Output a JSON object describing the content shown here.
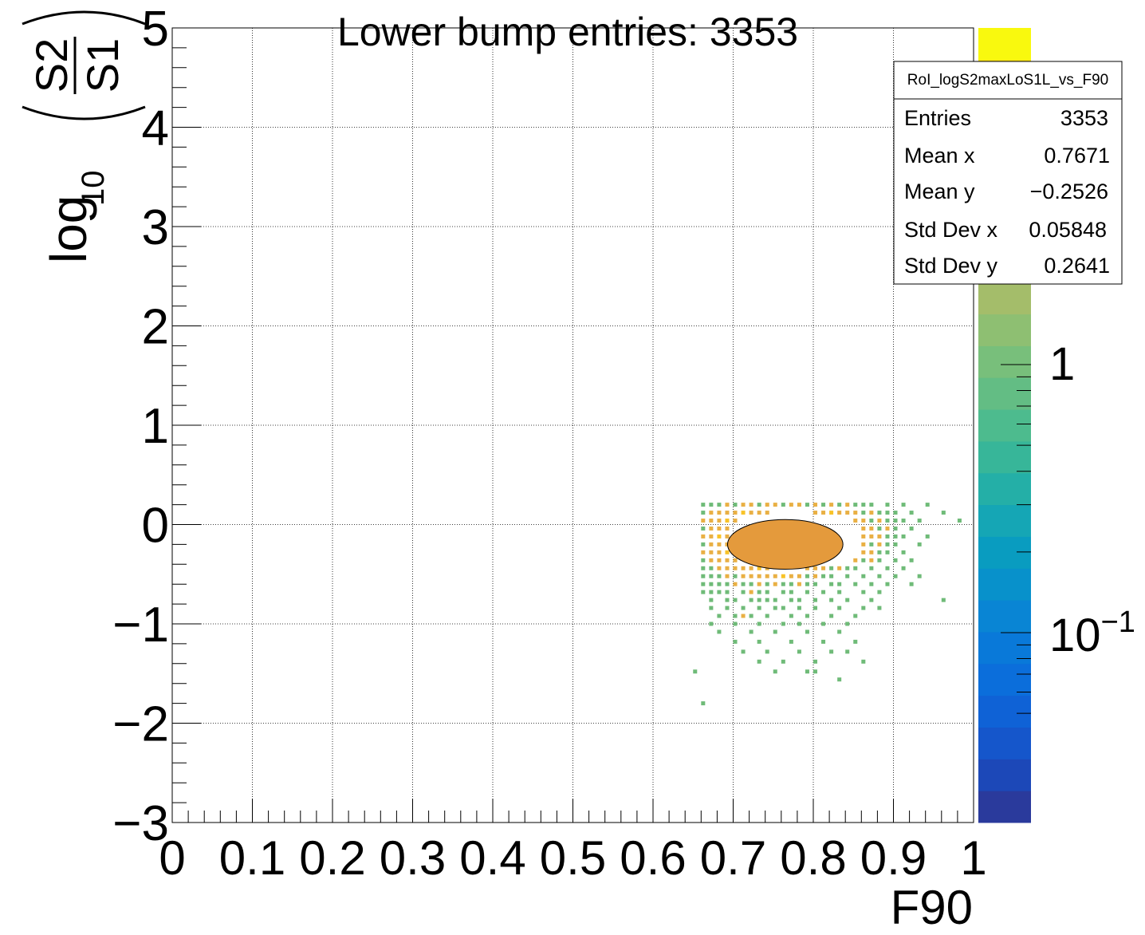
{
  "chart_data": {
    "type": "heatmap",
    "title": "Lower bump entries: 3353",
    "xlabel": "F90",
    "ylabel": {
      "prefix": "log",
      "subscript": "10",
      "numerator": "S2",
      "denominator": "S1"
    },
    "xlim": [
      0,
      1
    ],
    "ylim": [
      -3,
      5
    ],
    "grid": true,
    "x_ticks": [
      "0",
      "0.1",
      "0.2",
      "0.3",
      "0.4",
      "0.5",
      "0.6",
      "0.7",
      "0.8",
      "0.9",
      "1"
    ],
    "y_ticks": [
      "−3",
      "−2",
      "−1",
      "0",
      "1",
      "2",
      "3",
      "4",
      "5"
    ],
    "colorbar": {
      "scale": "log",
      "labels": [
        {
          "text": "1",
          "value": 1
        },
        {
          "text": "10",
          "sup": "−1",
          "value": 0.1
        }
      ],
      "colors": [
        "#2a3a9c",
        "#1c48b8",
        "#1556cb",
        "#0f62d6",
        "#0b6edb",
        "#0979d9",
        "#0985d4",
        "#0891cb",
        "#099cc0",
        "#15a6b5",
        "#24afa7",
        "#37b699",
        "#4dbb8e",
        "#63bd84",
        "#78bf7b",
        "#8ebf72",
        "#a4bd6a",
        "#b9b962",
        "#cdb45a",
        "#e0ad4f",
        "#efa442",
        "#f7ab38",
        "#f9c22a",
        "#f8dc1a",
        "#f9f90e"
      ]
    },
    "stats_box": {
      "title": "RoI_logS2maxLoS1L_vs_F90",
      "rows": [
        {
          "label": "Entries",
          "value": "3353"
        },
        {
          "label": "Mean x",
          "value": "0.7671"
        },
        {
          "label": "Mean y",
          "value": "−0.2526"
        },
        {
          "label": "Std Dev x",
          "value": "0.05848"
        },
        {
          "label": "Std Dev y",
          "value": "0.2641"
        }
      ]
    },
    "dense_core": {
      "center_x": 0.765,
      "center_y": -0.2,
      "half_width_x": 0.072,
      "half_width_y": 0.25,
      "color": "#e49a3c"
    },
    "bins": {
      "x_bin_width": 0.005,
      "y_bin_width": 0.04,
      "colors": {
        "low": "#6fbb78",
        "mid": "#e9b044",
        "high": "#f8c328"
      },
      "points": [
        [
          0.66,
          0.18,
          "low"
        ],
        [
          0.67,
          0.18,
          "low"
        ],
        [
          0.68,
          0.18,
          "low"
        ],
        [
          0.69,
          0.18,
          "mid"
        ],
        [
          0.7,
          0.18,
          "low"
        ],
        [
          0.71,
          0.18,
          "mid"
        ],
        [
          0.72,
          0.18,
          "mid"
        ],
        [
          0.73,
          0.18,
          "low"
        ],
        [
          0.74,
          0.18,
          "mid"
        ],
        [
          0.75,
          0.18,
          "mid"
        ],
        [
          0.76,
          0.18,
          "low"
        ],
        [
          0.77,
          0.18,
          "mid"
        ],
        [
          0.78,
          0.18,
          "mid"
        ],
        [
          0.79,
          0.18,
          "low"
        ],
        [
          0.8,
          0.18,
          "mid"
        ],
        [
          0.81,
          0.18,
          "low"
        ],
        [
          0.82,
          0.18,
          "mid"
        ],
        [
          0.83,
          0.18,
          "low"
        ],
        [
          0.84,
          0.18,
          "mid"
        ],
        [
          0.85,
          0.18,
          "low"
        ],
        [
          0.86,
          0.18,
          "low"
        ],
        [
          0.87,
          0.18,
          "low"
        ],
        [
          0.89,
          0.18,
          "low"
        ],
        [
          0.91,
          0.18,
          "low"
        ],
        [
          0.94,
          0.18,
          "low"
        ],
        [
          0.66,
          0.1,
          "low"
        ],
        [
          0.67,
          0.1,
          "mid"
        ],
        [
          0.68,
          0.1,
          "mid"
        ],
        [
          0.69,
          0.1,
          "mid"
        ],
        [
          0.7,
          0.1,
          "mid"
        ],
        [
          0.71,
          0.1,
          "high"
        ],
        [
          0.72,
          0.1,
          "mid"
        ],
        [
          0.73,
          0.1,
          "mid"
        ],
        [
          0.74,
          0.1,
          "mid"
        ],
        [
          0.8,
          0.1,
          "mid"
        ],
        [
          0.81,
          0.1,
          "mid"
        ],
        [
          0.82,
          0.1,
          "high"
        ],
        [
          0.83,
          0.1,
          "mid"
        ],
        [
          0.84,
          0.1,
          "mid"
        ],
        [
          0.85,
          0.1,
          "mid"
        ],
        [
          0.86,
          0.1,
          "low"
        ],
        [
          0.87,
          0.1,
          "mid"
        ],
        [
          0.88,
          0.1,
          "low"
        ],
        [
          0.89,
          0.1,
          "low"
        ],
        [
          0.9,
          0.1,
          "low"
        ],
        [
          0.92,
          0.1,
          "low"
        ],
        [
          0.96,
          0.1,
          "low"
        ],
        [
          0.66,
          0.02,
          "mid"
        ],
        [
          0.67,
          0.02,
          "mid"
        ],
        [
          0.68,
          0.02,
          "mid"
        ],
        [
          0.69,
          0.02,
          "high"
        ],
        [
          0.7,
          0.02,
          "mid"
        ],
        [
          0.85,
          0.02,
          "mid"
        ],
        [
          0.86,
          0.02,
          "mid"
        ],
        [
          0.87,
          0.02,
          "low"
        ],
        [
          0.88,
          0.02,
          "mid"
        ],
        [
          0.89,
          0.02,
          "low"
        ],
        [
          0.9,
          0.02,
          "low"
        ],
        [
          0.91,
          0.02,
          "low"
        ],
        [
          0.93,
          0.02,
          "low"
        ],
        [
          0.98,
          0.02,
          "low"
        ],
        [
          0.66,
          -0.06,
          "low"
        ],
        [
          0.67,
          -0.06,
          "mid"
        ],
        [
          0.68,
          -0.06,
          "mid"
        ],
        [
          0.69,
          -0.06,
          "mid"
        ],
        [
          0.86,
          -0.06,
          "mid"
        ],
        [
          0.87,
          -0.06,
          "mid"
        ],
        [
          0.88,
          -0.06,
          "low"
        ],
        [
          0.89,
          -0.06,
          "mid"
        ],
        [
          0.9,
          -0.06,
          "low"
        ],
        [
          0.92,
          -0.06,
          "low"
        ],
        [
          0.66,
          -0.14,
          "mid"
        ],
        [
          0.67,
          -0.14,
          "mid"
        ],
        [
          0.68,
          -0.14,
          "high"
        ],
        [
          0.69,
          -0.14,
          "mid"
        ],
        [
          0.86,
          -0.14,
          "mid"
        ],
        [
          0.87,
          -0.14,
          "mid"
        ],
        [
          0.88,
          -0.14,
          "mid"
        ],
        [
          0.89,
          -0.14,
          "low"
        ],
        [
          0.9,
          -0.14,
          "low"
        ],
        [
          0.91,
          -0.14,
          "low"
        ],
        [
          0.94,
          -0.14,
          "low"
        ],
        [
          0.66,
          -0.22,
          "low"
        ],
        [
          0.67,
          -0.22,
          "mid"
        ],
        [
          0.68,
          -0.22,
          "mid"
        ],
        [
          0.69,
          -0.22,
          "mid"
        ],
        [
          0.86,
          -0.22,
          "mid"
        ],
        [
          0.87,
          -0.22,
          "low"
        ],
        [
          0.88,
          -0.22,
          "mid"
        ],
        [
          0.89,
          -0.22,
          "low"
        ],
        [
          0.9,
          -0.22,
          "low"
        ],
        [
          0.93,
          -0.22,
          "low"
        ],
        [
          0.66,
          -0.3,
          "mid"
        ],
        [
          0.67,
          -0.3,
          "mid"
        ],
        [
          0.68,
          -0.3,
          "mid"
        ],
        [
          0.69,
          -0.3,
          "high"
        ],
        [
          0.86,
          -0.3,
          "mid"
        ],
        [
          0.87,
          -0.3,
          "mid"
        ],
        [
          0.88,
          -0.3,
          "low"
        ],
        [
          0.89,
          -0.3,
          "low"
        ],
        [
          0.91,
          -0.3,
          "low"
        ],
        [
          0.66,
          -0.38,
          "low"
        ],
        [
          0.67,
          -0.38,
          "mid"
        ],
        [
          0.68,
          -0.38,
          "mid"
        ],
        [
          0.69,
          -0.38,
          "mid"
        ],
        [
          0.7,
          -0.38,
          "mid"
        ],
        [
          0.85,
          -0.38,
          "mid"
        ],
        [
          0.86,
          -0.38,
          "low"
        ],
        [
          0.87,
          -0.38,
          "mid"
        ],
        [
          0.88,
          -0.38,
          "low"
        ],
        [
          0.9,
          -0.38,
          "low"
        ],
        [
          0.92,
          -0.38,
          "low"
        ],
        [
          0.66,
          -0.46,
          "low"
        ],
        [
          0.67,
          -0.46,
          "low"
        ],
        [
          0.68,
          -0.46,
          "mid"
        ],
        [
          0.69,
          -0.46,
          "mid"
        ],
        [
          0.7,
          -0.46,
          "mid"
        ],
        [
          0.71,
          -0.46,
          "mid"
        ],
        [
          0.72,
          -0.46,
          "mid"
        ],
        [
          0.73,
          -0.46,
          "high"
        ],
        [
          0.74,
          -0.46,
          "mid"
        ],
        [
          0.79,
          -0.46,
          "mid"
        ],
        [
          0.8,
          -0.46,
          "mid"
        ],
        [
          0.81,
          -0.46,
          "mid"
        ],
        [
          0.82,
          -0.46,
          "low"
        ],
        [
          0.83,
          -0.46,
          "mid"
        ],
        [
          0.84,
          -0.46,
          "low"
        ],
        [
          0.85,
          -0.46,
          "low"
        ],
        [
          0.87,
          -0.46,
          "low"
        ],
        [
          0.89,
          -0.46,
          "low"
        ],
        [
          0.91,
          -0.46,
          "low"
        ],
        [
          0.66,
          -0.54,
          "low"
        ],
        [
          0.67,
          -0.54,
          "low"
        ],
        [
          0.68,
          -0.54,
          "low"
        ],
        [
          0.69,
          -0.54,
          "mid"
        ],
        [
          0.7,
          -0.54,
          "low"
        ],
        [
          0.71,
          -0.54,
          "mid"
        ],
        [
          0.72,
          -0.54,
          "mid"
        ],
        [
          0.73,
          -0.54,
          "mid"
        ],
        [
          0.74,
          -0.54,
          "mid"
        ],
        [
          0.75,
          -0.54,
          "mid"
        ],
        [
          0.76,
          -0.54,
          "high"
        ],
        [
          0.77,
          -0.54,
          "mid"
        ],
        [
          0.78,
          -0.54,
          "mid"
        ],
        [
          0.79,
          -0.54,
          "low"
        ],
        [
          0.8,
          -0.54,
          "mid"
        ],
        [
          0.81,
          -0.54,
          "low"
        ],
        [
          0.82,
          -0.54,
          "low"
        ],
        [
          0.84,
          -0.54,
          "low"
        ],
        [
          0.86,
          -0.54,
          "low"
        ],
        [
          0.88,
          -0.54,
          "low"
        ],
        [
          0.9,
          -0.54,
          "low"
        ],
        [
          0.93,
          -0.54,
          "low"
        ],
        [
          0.66,
          -0.62,
          "low"
        ],
        [
          0.67,
          -0.62,
          "low"
        ],
        [
          0.68,
          -0.62,
          "low"
        ],
        [
          0.69,
          -0.62,
          "low"
        ],
        [
          0.7,
          -0.62,
          "mid"
        ],
        [
          0.71,
          -0.62,
          "low"
        ],
        [
          0.72,
          -0.62,
          "low"
        ],
        [
          0.73,
          -0.62,
          "mid"
        ],
        [
          0.74,
          -0.62,
          "low"
        ],
        [
          0.75,
          -0.62,
          "mid"
        ],
        [
          0.76,
          -0.62,
          "low"
        ],
        [
          0.77,
          -0.62,
          "low"
        ],
        [
          0.78,
          -0.62,
          "mid"
        ],
        [
          0.79,
          -0.62,
          "low"
        ],
        [
          0.8,
          -0.62,
          "low"
        ],
        [
          0.82,
          -0.62,
          "low"
        ],
        [
          0.83,
          -0.62,
          "low"
        ],
        [
          0.85,
          -0.62,
          "low"
        ],
        [
          0.87,
          -0.62,
          "low"
        ],
        [
          0.89,
          -0.62,
          "low"
        ],
        [
          0.92,
          -0.62,
          "low"
        ],
        [
          0.66,
          -0.7,
          "low"
        ],
        [
          0.67,
          -0.7,
          "low"
        ],
        [
          0.68,
          -0.7,
          "low"
        ],
        [
          0.69,
          -0.7,
          "low"
        ],
        [
          0.71,
          -0.7,
          "low"
        ],
        [
          0.72,
          -0.7,
          "mid"
        ],
        [
          0.73,
          -0.7,
          "low"
        ],
        [
          0.74,
          -0.7,
          "low"
        ],
        [
          0.76,
          -0.7,
          "low"
        ],
        [
          0.77,
          -0.7,
          "low"
        ],
        [
          0.79,
          -0.7,
          "low"
        ],
        [
          0.81,
          -0.7,
          "low"
        ],
        [
          0.83,
          -0.7,
          "low"
        ],
        [
          0.86,
          -0.7,
          "low"
        ],
        [
          0.88,
          -0.7,
          "low"
        ],
        [
          0.67,
          -0.78,
          "low"
        ],
        [
          0.69,
          -0.78,
          "low"
        ],
        [
          0.7,
          -0.78,
          "low"
        ],
        [
          0.72,
          -0.78,
          "low"
        ],
        [
          0.73,
          -0.78,
          "low"
        ],
        [
          0.74,
          -0.78,
          "low"
        ],
        [
          0.75,
          -0.78,
          "low"
        ],
        [
          0.77,
          -0.78,
          "low"
        ],
        [
          0.78,
          -0.78,
          "low"
        ],
        [
          0.8,
          -0.78,
          "low"
        ],
        [
          0.82,
          -0.78,
          "low"
        ],
        [
          0.84,
          -0.78,
          "low"
        ],
        [
          0.87,
          -0.78,
          "low"
        ],
        [
          0.96,
          -0.78,
          "low"
        ],
        [
          0.67,
          -0.86,
          "low"
        ],
        [
          0.69,
          -0.86,
          "low"
        ],
        [
          0.71,
          -0.86,
          "low"
        ],
        [
          0.73,
          -0.86,
          "low"
        ],
        [
          0.75,
          -0.86,
          "low"
        ],
        [
          0.76,
          -0.86,
          "low"
        ],
        [
          0.78,
          -0.86,
          "low"
        ],
        [
          0.8,
          -0.86,
          "low"
        ],
        [
          0.83,
          -0.86,
          "low"
        ],
        [
          0.86,
          -0.86,
          "low"
        ],
        [
          0.88,
          -0.86,
          "low"
        ],
        [
          0.68,
          -0.94,
          "low"
        ],
        [
          0.7,
          -0.94,
          "low"
        ],
        [
          0.71,
          -0.94,
          "mid"
        ],
        [
          0.72,
          -0.94,
          "low"
        ],
        [
          0.74,
          -0.94,
          "low"
        ],
        [
          0.77,
          -0.94,
          "low"
        ],
        [
          0.79,
          -0.94,
          "low"
        ],
        [
          0.82,
          -0.94,
          "low"
        ],
        [
          0.85,
          -0.94,
          "low"
        ],
        [
          0.67,
          -1.02,
          "low"
        ],
        [
          0.7,
          -1.02,
          "low"
        ],
        [
          0.73,
          -1.02,
          "low"
        ],
        [
          0.76,
          -1.02,
          "low"
        ],
        [
          0.78,
          -1.02,
          "low"
        ],
        [
          0.81,
          -1.02,
          "low"
        ],
        [
          0.84,
          -1.02,
          "low"
        ],
        [
          0.68,
          -1.1,
          "low"
        ],
        [
          0.72,
          -1.1,
          "low"
        ],
        [
          0.75,
          -1.1,
          "low"
        ],
        [
          0.79,
          -1.1,
          "low"
        ],
        [
          0.83,
          -1.1,
          "low"
        ],
        [
          0.7,
          -1.2,
          "low"
        ],
        [
          0.73,
          -1.2,
          "low"
        ],
        [
          0.77,
          -1.2,
          "low"
        ],
        [
          0.81,
          -1.2,
          "low"
        ],
        [
          0.85,
          -1.2,
          "low"
        ],
        [
          0.71,
          -1.3,
          "low"
        ],
        [
          0.74,
          -1.3,
          "low"
        ],
        [
          0.78,
          -1.3,
          "low"
        ],
        [
          0.82,
          -1.3,
          "low"
        ],
        [
          0.84,
          -1.3,
          "low"
        ],
        [
          0.73,
          -1.4,
          "low"
        ],
        [
          0.76,
          -1.4,
          "low"
        ],
        [
          0.8,
          -1.4,
          "low"
        ],
        [
          0.86,
          -1.4,
          "low"
        ],
        [
          0.75,
          -1.5,
          "low"
        ],
        [
          0.79,
          -1.5,
          "low"
        ],
        [
          0.8,
          -1.5,
          "low"
        ],
        [
          0.65,
          -1.5,
          "low"
        ],
        [
          0.83,
          -1.58,
          "low"
        ],
        [
          0.66,
          -1.82,
          "low"
        ]
      ]
    }
  }
}
